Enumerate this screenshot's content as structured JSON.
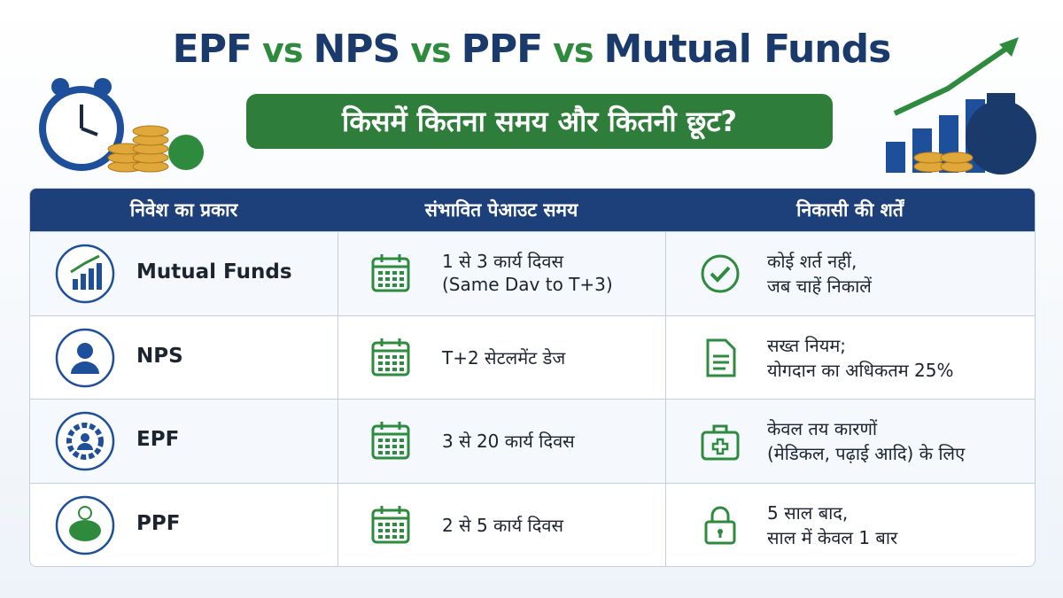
{
  "header": {
    "title": [
      "EPF",
      "vs",
      "NPS",
      "vs",
      "PPF",
      "vs",
      "Mutual Funds"
    ],
    "subtitle": "किसमें कितना समय और कितनी छूट?"
  },
  "table": {
    "columns": [
      "निवेश का प्रकार",
      "संभावित पेआउट समय",
      "निकासी की शर्तें"
    ],
    "rows": [
      {
        "type": "Mutual Funds",
        "payout": [
          "1 से 3 कार्य दिवस",
          "(Same Dav to T+3)"
        ],
        "withdrawal": [
          "कोई शर्त नहीं,",
          "जब चाहें निकालें"
        ]
      },
      {
        "type": "NPS",
        "payout": [
          "T+2 सेटलमेंट डेज"
        ],
        "withdrawal": [
          "सख्त नियम;",
          "योगदान का अधिकतम 25%"
        ]
      },
      {
        "type": "EPF",
        "payout": [
          "3 से 20 कार्य दिवस"
        ],
        "withdrawal": [
          "केवल तय कारणों",
          "(मेडिकल, पढ़ाई आदि) के लिए"
        ]
      },
      {
        "type": "PPF",
        "payout": [
          "2 से 5 कार्य दिवस"
        ],
        "withdrawal": [
          "5 साल बाद,",
          "साल में केवल 1 बार"
        ]
      }
    ]
  }
}
